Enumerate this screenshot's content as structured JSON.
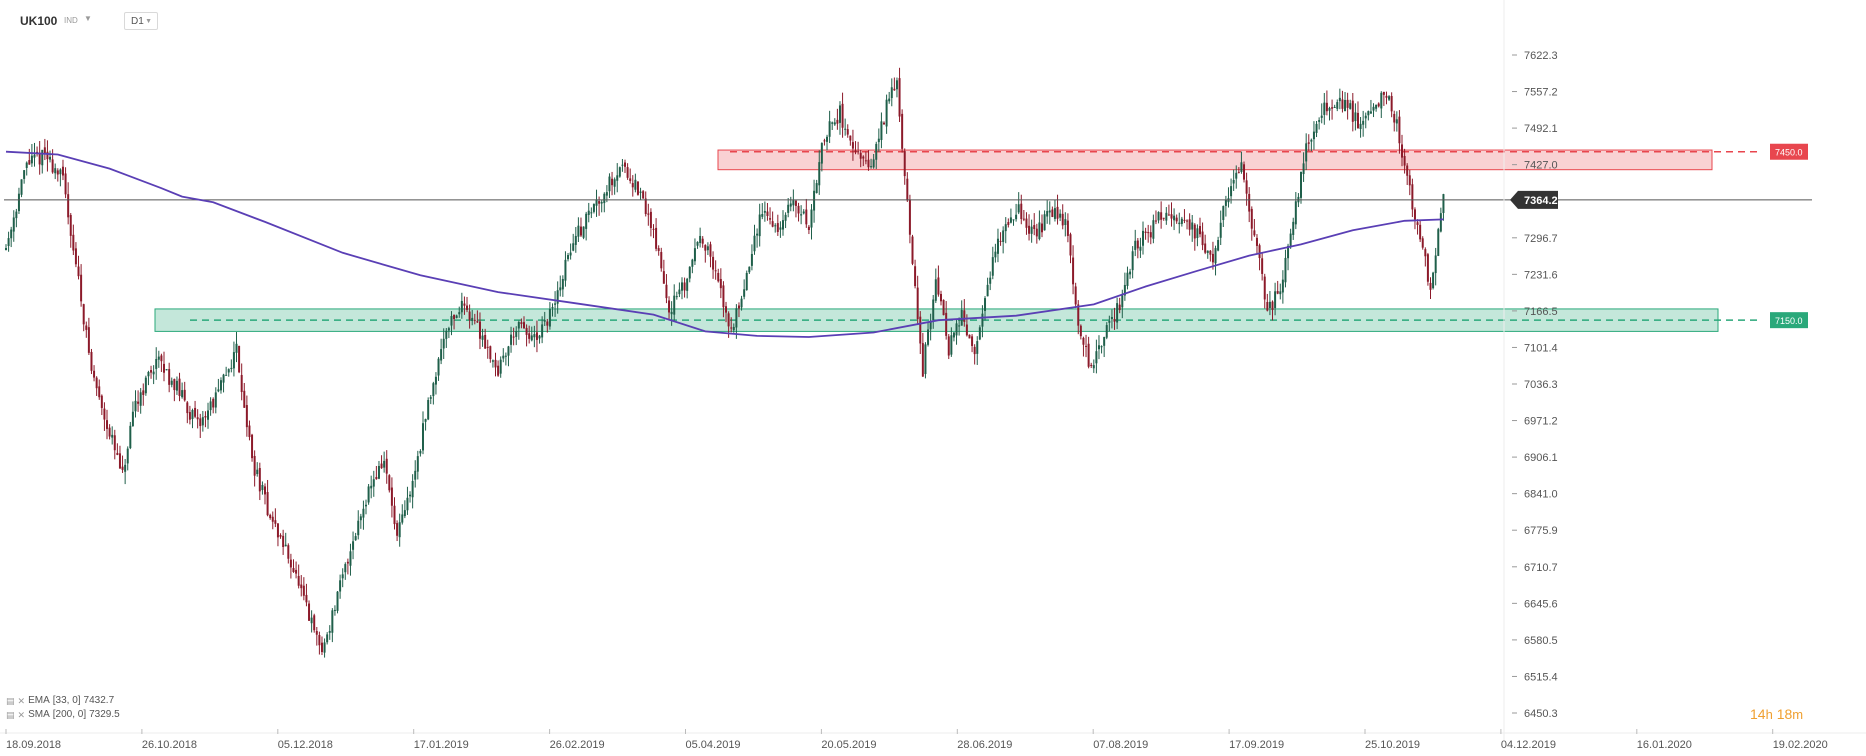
{
  "header": {
    "symbol": "UK100",
    "type": "IND",
    "timeframe": "D1"
  },
  "legend": {
    "ema": {
      "name": "EMA",
      "params": "[33, 0]",
      "value": "7432.7"
    },
    "sma": {
      "name": "SMA",
      "params": "[200, 0]",
      "value": "7329.5"
    }
  },
  "timer": {
    "hours": "14",
    "h": "h",
    "minutes": "18",
    "m": "m"
  },
  "colors": {
    "bull": "#1f5f4a",
    "bear": "#8c1a2a",
    "sma": "#5a3fb5",
    "resistance": "#e8464e",
    "support": "#2aa87a",
    "axis_text": "#555555",
    "price_tag": "#333333"
  },
  "chart_data": {
    "type": "candlestick",
    "yaxis": {
      "ticks": [
        "7622.3",
        "7557.2",
        "7492.1",
        "7427.0",
        "7296.7",
        "7231.6",
        "7166.5",
        "7101.4",
        "7036.3",
        "6971.2",
        "6906.1",
        "6841.0",
        "6775.9",
        "6710.7",
        "6645.6",
        "6580.5",
        "6515.4",
        "6450.3"
      ],
      "range": [
        6450.3,
        7650
      ]
    },
    "xaxis": {
      "ticks": [
        "18.09.2018",
        "26.10.2018",
        "05.12.2018",
        "17.01.2019",
        "26.02.2019",
        "05.04.2019",
        "20.05.2019",
        "28.06.2019",
        "07.08.2019",
        "17.09.2019",
        "25.10.2019",
        "04.12.2019",
        "16.01.2020",
        "19.02.2020"
      ]
    },
    "last_price": "7364.2",
    "resistance": {
      "label": "7450.0",
      "value": 7450.0,
      "zone": [
        7418,
        7453
      ]
    },
    "support": {
      "label": "7150.0",
      "value": 7150.0,
      "zone": [
        7130,
        7170
      ]
    },
    "close_path": [
      [
        0,
        7280
      ],
      [
        8,
        7430
      ],
      [
        15,
        7445
      ],
      [
        22,
        7400
      ],
      [
        28,
        7220
      ],
      [
        33,
        7060
      ],
      [
        40,
        6950
      ],
      [
        45,
        6870
      ],
      [
        50,
        7000
      ],
      [
        58,
        7080
      ],
      [
        66,
        7030
      ],
      [
        74,
        6960
      ],
      [
        82,
        7020
      ],
      [
        89,
        7100
      ],
      [
        95,
        6900
      ],
      [
        102,
        6800
      ],
      [
        110,
        6720
      ],
      [
        117,
        6620
      ],
      [
        122,
        6560
      ],
      [
        127,
        6640
      ],
      [
        134,
        6760
      ],
      [
        140,
        6850
      ],
      [
        146,
        6900
      ],
      [
        151,
        6760
      ],
      [
        157,
        6860
      ],
      [
        163,
        7000
      ],
      [
        170,
        7140
      ],
      [
        177,
        7180
      ],
      [
        184,
        7120
      ],
      [
        190,
        7060
      ],
      [
        197,
        7140
      ],
      [
        205,
        7110
      ],
      [
        212,
        7180
      ],
      [
        218,
        7280
      ],
      [
        225,
        7340
      ],
      [
        231,
        7380
      ],
      [
        238,
        7430
      ],
      [
        244,
        7380
      ],
      [
        250,
        7310
      ],
      [
        256,
        7170
      ],
      [
        262,
        7210
      ],
      [
        268,
        7310
      ],
      [
        274,
        7230
      ],
      [
        280,
        7130
      ],
      [
        286,
        7230
      ],
      [
        292,
        7350
      ],
      [
        298,
        7310
      ],
      [
        304,
        7360
      ],
      [
        310,
        7320
      ],
      [
        316,
        7480
      ],
      [
        322,
        7520
      ],
      [
        328,
        7440
      ],
      [
        334,
        7420
      ],
      [
        340,
        7530
      ],
      [
        344,
        7580
      ],
      [
        349,
        7300
      ],
      [
        354,
        7060
      ],
      [
        359,
        7230
      ],
      [
        364,
        7100
      ],
      [
        369,
        7160
      ],
      [
        374,
        7080
      ],
      [
        379,
        7220
      ],
      [
        385,
        7320
      ],
      [
        391,
        7350
      ],
      [
        397,
        7300
      ],
      [
        403,
        7340
      ],
      [
        409,
        7330
      ],
      [
        414,
        7150
      ],
      [
        419,
        7060
      ],
      [
        424,
        7120
      ],
      [
        430,
        7180
      ],
      [
        436,
        7280
      ],
      [
        442,
        7310
      ],
      [
        448,
        7350
      ],
      [
        454,
        7330
      ],
      [
        460,
        7300
      ],
      [
        466,
        7260
      ],
      [
        472,
        7380
      ],
      [
        477,
        7430
      ],
      [
        482,
        7300
      ],
      [
        487,
        7170
      ],
      [
        492,
        7200
      ],
      [
        497,
        7330
      ],
      [
        502,
        7460
      ],
      [
        507,
        7520
      ],
      [
        512,
        7530
      ],
      [
        517,
        7540
      ],
      [
        522,
        7500
      ],
      [
        527,
        7520
      ],
      [
        532,
        7560
      ],
      [
        537,
        7500
      ],
      [
        541,
        7400
      ],
      [
        546,
        7300
      ],
      [
        550,
        7200
      ],
      [
        555,
        7364.2
      ]
    ],
    "sma_path": [
      [
        0,
        7450
      ],
      [
        20,
        7445
      ],
      [
        40,
        7420
      ],
      [
        60,
        7385
      ],
      [
        68,
        7370
      ],
      [
        80,
        7360
      ],
      [
        100,
        7325
      ],
      [
        130,
        7270
      ],
      [
        160,
        7230
      ],
      [
        190,
        7200
      ],
      [
        220,
        7180
      ],
      [
        250,
        7160
      ],
      [
        270,
        7130
      ],
      [
        290,
        7122
      ],
      [
        310,
        7120
      ],
      [
        335,
        7128
      ],
      [
        360,
        7150
      ],
      [
        390,
        7158
      ],
      [
        420,
        7178
      ],
      [
        440,
        7210
      ],
      [
        460,
        7238
      ],
      [
        480,
        7265
      ],
      [
        500,
        7285
      ],
      [
        520,
        7310
      ],
      [
        540,
        7327
      ],
      [
        555,
        7329.5
      ]
    ]
  }
}
